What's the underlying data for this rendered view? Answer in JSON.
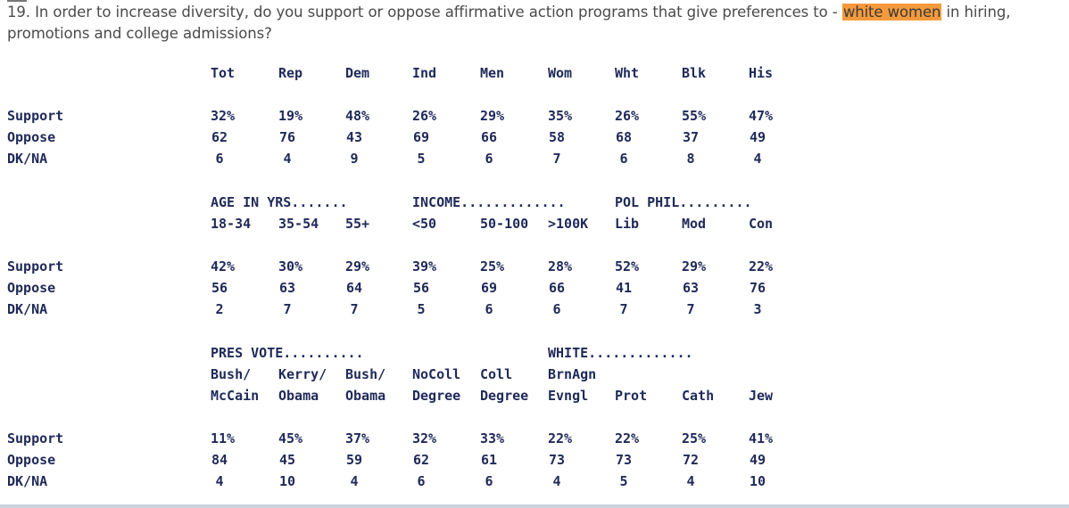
{
  "question": {
    "number": "19.",
    "text_before": "In order to increase diversity, do you support or oppose affirmative action programs that give preferences to -",
    "highlight": "white women",
    "text_after": "in hiring, promotions and college admissions?",
    "highlight_color": "#f59a3c"
  },
  "row_labels": [
    "Support",
    "Oppose",
    "DK/NA"
  ],
  "blocks": [
    {
      "group_headers": [],
      "header_rows": [
        [
          "Tot",
          "Rep",
          "Dem",
          "Ind",
          "Men",
          "Wom",
          "Wht",
          "Blk",
          "His"
        ]
      ],
      "rows": [
        [
          "32%",
          "19%",
          "48%",
          "26%",
          "29%",
          "35%",
          "26%",
          "55%",
          "47%"
        ],
        [
          "62",
          "76",
          "43",
          "69",
          "66",
          "58",
          "68",
          "37",
          "49"
        ],
        [
          "6",
          "4",
          "9",
          "5",
          "6",
          "7",
          "6",
          "8",
          "4"
        ]
      ]
    },
    {
      "group_headers": [
        {
          "col": 0,
          "text": "AGE IN YRS......."
        },
        {
          "col": 3,
          "text": "INCOME............."
        },
        {
          "col": 6,
          "text": "POL PHIL........."
        }
      ],
      "header_rows": [
        [
          "18-34",
          "35-54",
          "55+",
          "<50",
          "50-100",
          ">100K",
          "Lib",
          "Mod",
          "Con"
        ]
      ],
      "rows": [
        [
          "42%",
          "30%",
          "29%",
          "39%",
          "25%",
          "28%",
          "52%",
          "29%",
          "22%"
        ],
        [
          "56",
          "63",
          "64",
          "56",
          "69",
          "66",
          "41",
          "63",
          "76"
        ],
        [
          "2",
          "7",
          "7",
          "5",
          "6",
          "6",
          "7",
          "7",
          "3"
        ]
      ]
    },
    {
      "group_headers": [
        {
          "col": 0,
          "text": "PRES VOTE.........."
        },
        {
          "col": 5,
          "text": "WHITE............."
        }
      ],
      "header_rows": [
        [
          "Bush/",
          "Kerry/",
          "Bush/",
          "NoColl",
          "Coll",
          "BrnAgn",
          "",
          "",
          ""
        ],
        [
          "McCain",
          "Obama",
          "Obama",
          "Degree",
          "Degree",
          "Evngl",
          "Prot",
          "Cath",
          "Jew"
        ]
      ],
      "rows": [
        [
          "11%",
          "45%",
          "37%",
          "32%",
          "33%",
          "22%",
          "22%",
          "25%",
          "41%"
        ],
        [
          "84",
          "45",
          "59",
          "62",
          "61",
          "73",
          "73",
          "72",
          "49"
        ],
        [
          "4",
          "10",
          "4",
          "6",
          "6",
          "4",
          "5",
          "4",
          "10"
        ]
      ]
    }
  ]
}
